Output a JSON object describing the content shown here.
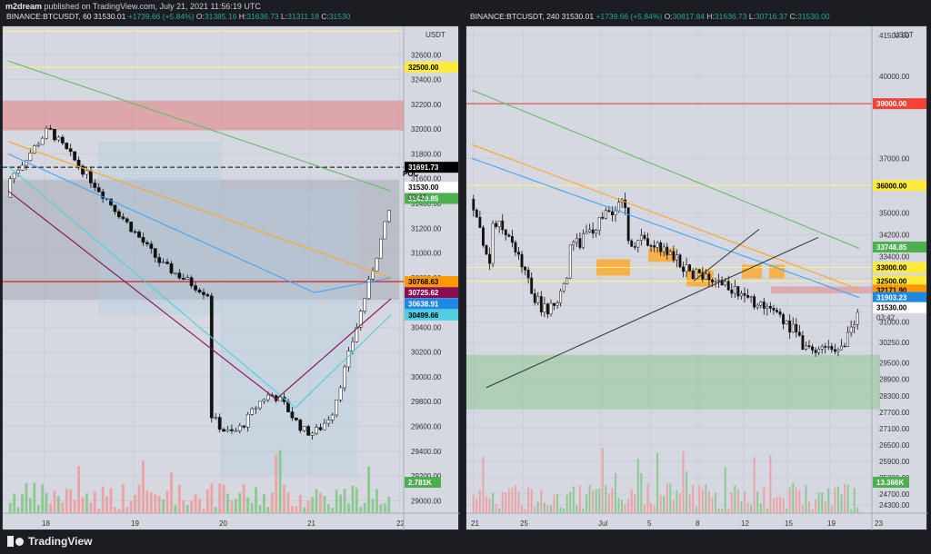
{
  "publisher": {
    "user": "m2dream",
    "text": "published on TradingView.com, July 21, 2021 11:56:19 UTC"
  },
  "footer": {
    "brand": "TradingView"
  },
  "left_chart": {
    "symbol": "BINANCE:BTCUSDT, 60",
    "price": "31530.01",
    "change": "+1739.66 (+5.84%)",
    "open_label": "O:",
    "open": "31385.16",
    "high_label": "H:",
    "high": "31636.73",
    "low_label": "L:",
    "low": "31311.18",
    "close_label": "C:",
    "close": "31530",
    "currency": "USDT",
    "poc_label": "POC",
    "countdown": "03:42",
    "volume_badge": "2.781K",
    "price_min": 28900,
    "price_max": 32800,
    "y_ticks": [
      "32600.00",
      "32400.00",
      "32200.00",
      "32000.00",
      "31800.00",
      "31600.00",
      "31400.00",
      "31200.00",
      "31000.00",
      "30800.00",
      "30600.00",
      "30400.00",
      "30200.00",
      "30000.00",
      "29800.00",
      "29600.00",
      "29400.00",
      "29200.00",
      "29000.00"
    ],
    "x_ticks": [
      "18",
      "19",
      "20",
      "21",
      "22"
    ],
    "badges": [
      {
        "text": "32500.00",
        "value": 32500,
        "color": "#ffeb3b",
        "fg": "#000000"
      },
      {
        "text": "31691.73",
        "value": 31691.73,
        "color": "#000000",
        "fg": "#ffffff"
      },
      {
        "text": "31530.00",
        "value": 31530,
        "color": "#ffffff",
        "fg": "#000000"
      },
      {
        "text": "31490.85",
        "value": 31440,
        "color": "#4caf50",
        "fg": "#ffffff"
      },
      {
        "text": "30768.63",
        "value": 30768.63,
        "color": "#ff9800",
        "fg": "#000000"
      },
      {
        "text": "30725.62",
        "value": 30680,
        "color": "#880e4f",
        "fg": "#ffffff"
      },
      {
        "text": "30638.91",
        "value": 30590,
        "color": "#1e88e5",
        "fg": "#ffffff"
      },
      {
        "text": "30499.66",
        "value": 30499.66,
        "color": "#4dd0e1",
        "fg": "#000000"
      }
    ]
  },
  "right_chart": {
    "symbol": "BINANCE:BTCUSDT, 240",
    "price": "31530.01",
    "change": "+1739.66 (+5.84%)",
    "open_label": "O:",
    "open": "30817.84",
    "high_label": "H:",
    "high": "31636.73",
    "low_label": "L:",
    "low": "30716.37",
    "close_label": "C:",
    "close": "31530.00",
    "currency": "USDT",
    "countdown": "03:42",
    "volume_badge": "13.366K",
    "price_min": 24000,
    "price_max": 41700,
    "y_ticks": [
      "41500.00",
      "40000.00",
      "39000.00",
      "37000.00",
      "36000.00",
      "35000.00",
      "34200.00",
      "33400.00",
      "32600.00",
      "31600.00",
      "31000.00",
      "30250.00",
      "29500.00",
      "28900.00",
      "28300.00",
      "27700.00",
      "27100.00",
      "26500.00",
      "25900.00",
      "25300.00",
      "24700.00",
      "24300.00"
    ],
    "x_ticks": [
      "21",
      "25",
      "Jul",
      "5",
      "8",
      "12",
      "15",
      "19",
      "23"
    ],
    "badges": [
      {
        "text": "39000.00",
        "value": 39000,
        "color": "#f44336",
        "fg": "#ffffff"
      },
      {
        "text": "36000.00",
        "value": 36000,
        "color": "#ffeb3b",
        "fg": "#000000"
      },
      {
        "text": "33748.85",
        "value": 33748.85,
        "color": "#4caf50",
        "fg": "#ffffff"
      },
      {
        "text": "33000.00",
        "value": 33000,
        "color": "#ffeb3b",
        "fg": "#000000"
      },
      {
        "text": "32500.00",
        "value": 32500,
        "color": "#ffeb3b",
        "fg": "#000000"
      },
      {
        "text": "32171.90",
        "value": 32171.9,
        "color": "#ff9800",
        "fg": "#000000"
      },
      {
        "text": "31903.23",
        "value": 31903.23,
        "color": "#1e88e5",
        "fg": "#ffffff"
      },
      {
        "text": "31530.00",
        "value": 31530,
        "color": "#ffffff",
        "fg": "#000000"
      }
    ]
  }
}
